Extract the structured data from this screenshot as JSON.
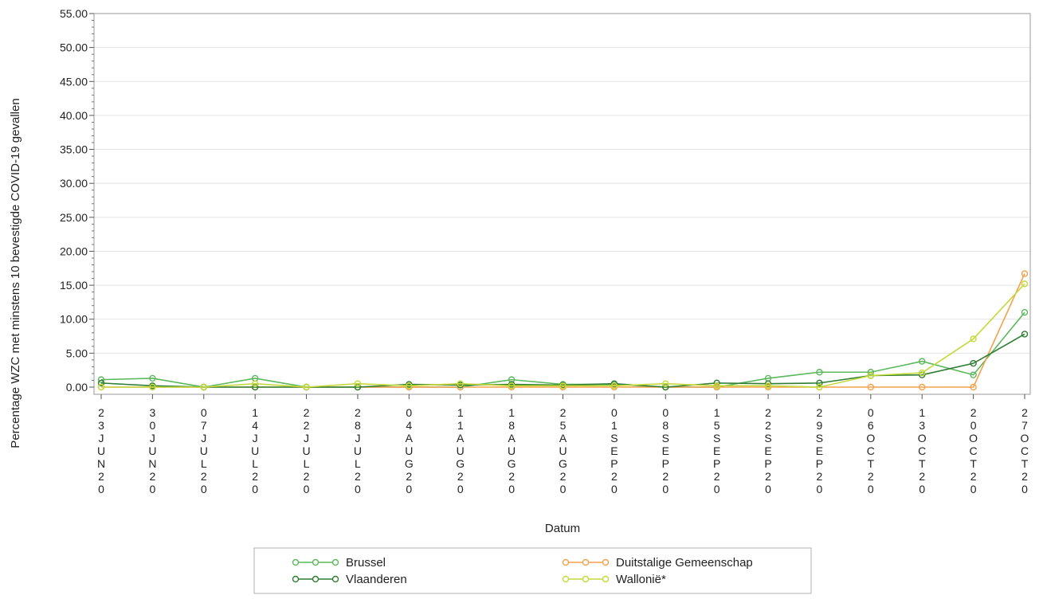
{
  "chart_data": {
    "type": "line",
    "xlabel": "Datum",
    "ylabel": "Percentage WZC met minstens 10 bevestigde COVID-19 gevallen",
    "ylim": [
      0,
      55
    ],
    "yticks": [
      "0.00",
      "5.00",
      "10.00",
      "15.00",
      "20.00",
      "25.00",
      "30.00",
      "35.00",
      "40.00",
      "45.00",
      "50.00",
      "55.00"
    ],
    "categories": [
      "23JUN20",
      "30JUN20",
      "07JUL20",
      "14JUL20",
      "22JUL20",
      "28JUL20",
      "04AUG20",
      "11AUG20",
      "18AUG20",
      "25AUG20",
      "01SEP20",
      "08SEP20",
      "15SEP20",
      "22SEP20",
      "29SEP20",
      "06OCT20",
      "13OCT20",
      "20OCT20",
      "27OCT20"
    ],
    "grid": true,
    "legend_position": "bottom",
    "series": [
      {
        "name": "Brussel",
        "color": "#5cb85c",
        "values": [
          1.1,
          1.3,
          0.0,
          1.3,
          0.0,
          0.0,
          0.0,
          0.0,
          1.1,
          0.4,
          0.4,
          0.0,
          0.0,
          1.3,
          2.2,
          2.2,
          3.8,
          1.8,
          11.0
        ]
      },
      {
        "name": "Duitstalige Gemeenschap",
        "color": "#f5a04a",
        "values": [
          0.0,
          0.0,
          0.0,
          0.0,
          0.0,
          0.0,
          0.0,
          0.0,
          0.0,
          0.0,
          0.0,
          0.0,
          0.0,
          0.0,
          0.0,
          0.0,
          0.0,
          0.0,
          16.7
        ]
      },
      {
        "name": "Vlaanderen",
        "color": "#2e7d32",
        "values": [
          0.6,
          0.2,
          0.0,
          0.0,
          0.0,
          0.0,
          0.4,
          0.3,
          0.4,
          0.3,
          0.5,
          0.0,
          0.6,
          0.5,
          0.6,
          1.7,
          1.8,
          3.5,
          7.8
        ]
      },
      {
        "name": "Wallonië*",
        "color": "#c6d93a",
        "values": [
          0.0,
          0.0,
          0.0,
          0.5,
          0.0,
          0.5,
          0.2,
          0.5,
          0.2,
          0.2,
          0.2,
          0.5,
          0.2,
          0.2,
          0.0,
          1.7,
          2.1,
          7.1,
          15.2
        ]
      }
    ]
  }
}
